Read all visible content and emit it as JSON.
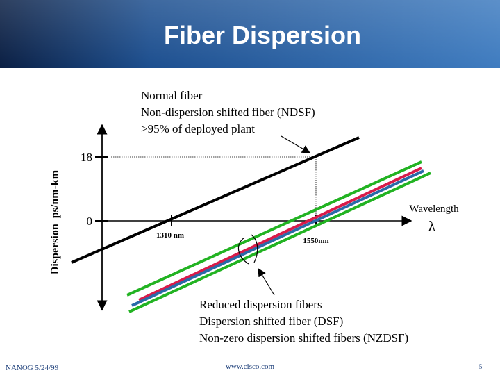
{
  "header": {
    "title": "Fiber Dispersion"
  },
  "diagram": {
    "y_axis_label": "Dispersion  ps/nm-km",
    "x_axis_label": "Wavelength",
    "x_axis_symbol": "λ",
    "y_ticks": [
      "18",
      "0"
    ],
    "x_ticks": [
      "1310 nm",
      "1550nm"
    ],
    "normal_fiber_note": [
      "Normal fiber",
      "Non-dispersion shifted fiber (NDSF)",
      ">95% of deployed plant"
    ],
    "reduced_note": [
      "Reduced dispersion fibers",
      "Dispersion shifted fiber (DSF)",
      "Non-zero dispersion shifted fibers (NZDSF)"
    ]
  },
  "footer": {
    "left": "NANOG 5/24/99",
    "center": "www.cisco.com",
    "page": "5"
  }
}
